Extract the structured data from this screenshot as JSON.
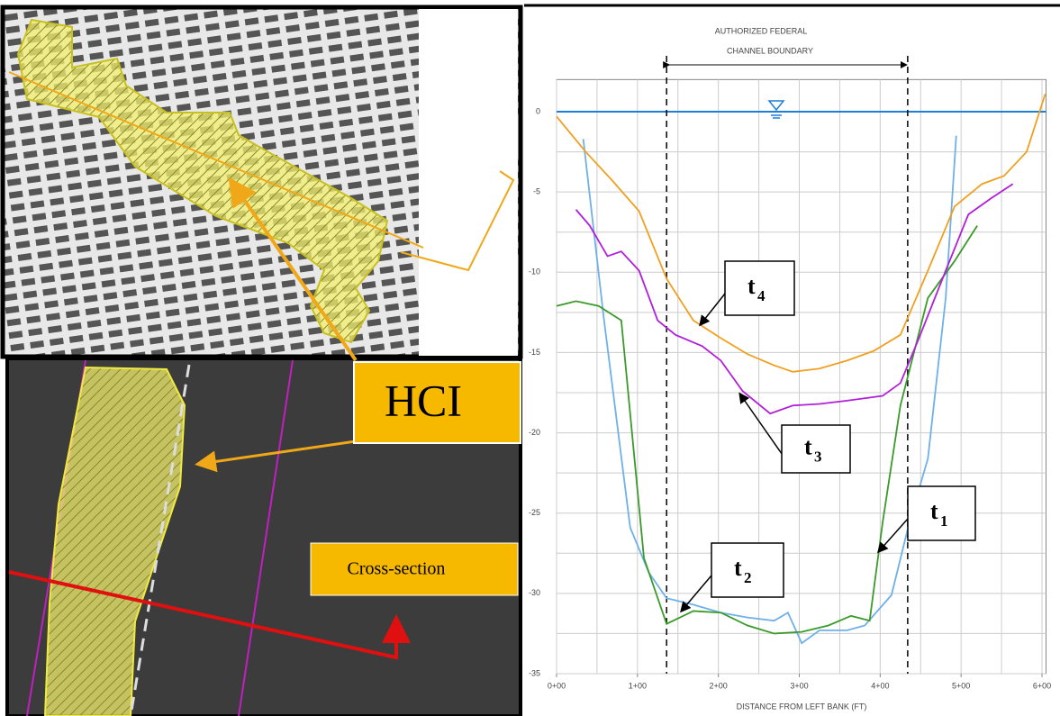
{
  "chart_data": {
    "type": "line",
    "annotation": [
      "AUTHORIZED FEDERAL",
      "CHANNEL BOUNDARY"
    ],
    "x_label": "DISTANCE FROM LEFT BANK (FT)",
    "xlim": [
      0,
      605
    ],
    "ylim": [
      -35,
      2
    ],
    "xticks": [
      {
        "value": 0,
        "label": "0+00"
      },
      {
        "value": 100,
        "label": "1+00"
      },
      {
        "value": 200,
        "label": "2+00"
      },
      {
        "value": 300,
        "label": "3+00"
      },
      {
        "value": 400,
        "label": "4+00"
      },
      {
        "value": 500,
        "label": "5+00"
      },
      {
        "value": 600,
        "label": "6+00"
      }
    ],
    "yticks": [
      0,
      -5,
      -10,
      -15,
      -20,
      -25,
      -30,
      -35
    ],
    "xgrid": [
      0,
      50,
      100,
      150,
      200,
      250,
      300,
      350,
      400,
      450,
      500,
      550,
      600
    ],
    "ygrid": [
      0,
      -2.5,
      -5,
      -7.5,
      -10,
      -12.5,
      -15,
      -17.5,
      -20,
      -22.5,
      -25,
      -27.5,
      -30,
      -32.5,
      -35
    ],
    "water_level": 0,
    "water_color": "#1e7fd8",
    "boundary": [
      136,
      434
    ],
    "series": [
      {
        "label": {
          "main": "t",
          "sub": "1"
        },
        "color": "#6fb0e8",
        "x": [
          33,
          58,
          91,
          114,
          136,
          169,
          203,
          236,
          269,
          286,
          303,
          325,
          359,
          381,
          414,
          436,
          459,
          481,
          494
        ],
        "values": [
          -1.7,
          -12.7,
          -25.9,
          -28.7,
          -30.3,
          -30.7,
          -31.2,
          -31.5,
          -31.7,
          -31.2,
          -33.1,
          -32.3,
          -32.3,
          -32,
          -30.1,
          -25.6,
          -21.6,
          -11.6,
          -1.5
        ]
      },
      {
        "label": {
          "main": "t",
          "sub": "2"
        },
        "color": "#3a9a2a",
        "x": [
          0,
          24,
          52,
          80,
          108,
          136,
          169,
          203,
          236,
          269,
          303,
          336,
          364,
          387,
          403,
          425,
          459,
          492,
          520
        ],
        "values": [
          -12.1,
          -11.8,
          -12.1,
          -13,
          -27.8,
          -31.9,
          -31.1,
          -31.2,
          -32,
          -32.5,
          -32.4,
          -32,
          -31.4,
          -31.7,
          -25.6,
          -18.3,
          -11.6,
          -9.3,
          -7.1
        ]
      },
      {
        "label": {
          "main": "t",
          "sub": "3"
        },
        "color": "#b020d8",
        "x": [
          24,
          41,
          63,
          80,
          102,
          125,
          147,
          180,
          203,
          230,
          264,
          292,
          325,
          359,
          403,
          425,
          448,
          481,
          509,
          537,
          564
        ],
        "values": [
          -6.1,
          -7.1,
          -9,
          -8.7,
          -9.9,
          -13,
          -13.9,
          -14.6,
          -15.5,
          -17.4,
          -18.8,
          -18.3,
          -18.2,
          -18,
          -17.7,
          -16.9,
          -14.1,
          -9.9,
          -6.4,
          -5.4,
          -4.5
        ]
      },
      {
        "label": {
          "main": "t",
          "sub": "4"
        },
        "color": "#f0a020",
        "x": [
          0,
          36,
          69,
          102,
          136,
          169,
          203,
          236,
          269,
          292,
          325,
          359,
          392,
          425,
          459,
          492,
          526,
          553,
          581,
          604
        ],
        "values": [
          -0.3,
          -2.5,
          -4.3,
          -6.2,
          -10.4,
          -13,
          -14.1,
          -15.1,
          -15.8,
          -16.2,
          -16,
          -15.5,
          -14.9,
          -13.9,
          -9.9,
          -5.9,
          -4.5,
          -4,
          -2.5,
          1.1
        ]
      }
    ]
  },
  "hci_label": "HCI",
  "cross_section_label": "Cross-section"
}
